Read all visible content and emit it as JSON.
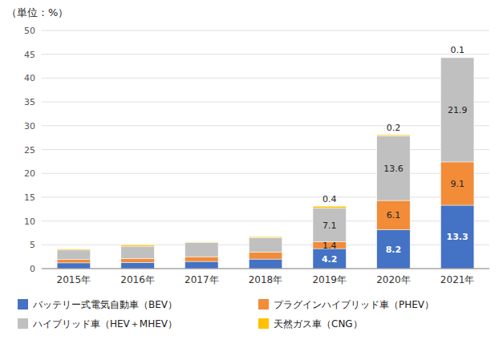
{
  "chart_data": {
    "type": "bar",
    "stacked": true,
    "title": "（単位：%）",
    "categories": [
      "2015年",
      "2016年",
      "2017年",
      "2018年",
      "2019年",
      "2020年",
      "2021年"
    ],
    "series": [
      {
        "name": "バッテリー式電気自動車（BEV）",
        "color": "#4472c4",
        "values": [
          1.2,
          1.3,
          1.5,
          2.0,
          4.2,
          8.2,
          13.3
        ],
        "value_labels": [
          null,
          null,
          null,
          null,
          "4.2",
          "8.2",
          "13.3"
        ]
      },
      {
        "name": "プラグインハイブリッド車（PHEV）",
        "color": "#f28c38",
        "values": [
          0.7,
          0.8,
          1.0,
          1.5,
          1.4,
          6.1,
          9.1
        ],
        "value_labels": [
          null,
          null,
          null,
          null,
          "1.4",
          "6.1",
          "9.1"
        ]
      },
      {
        "name": "ハイブリッド車（HEV＋MHEV）",
        "color": "#c0c0c0",
        "values": [
          2.0,
          2.6,
          3.0,
          3.0,
          7.1,
          13.6,
          21.9
        ],
        "value_labels": [
          null,
          null,
          null,
          null,
          "7.1",
          "13.6",
          "21.9"
        ]
      },
      {
        "name": "天然ガス車（CNG）",
        "color": "#ffc000",
        "values": [
          0.2,
          0.3,
          0.1,
          0.2,
          0.4,
          0.2,
          0.1
        ],
        "value_labels": [
          null,
          null,
          null,
          null,
          "0.4",
          "0.2",
          "0.1"
        ]
      }
    ],
    "ylim": [
      0,
      50
    ],
    "yticks": [
      0,
      5,
      10,
      15,
      20,
      25,
      30,
      35,
      40,
      45,
      50
    ],
    "grid": true,
    "data_labels": true,
    "legend": "bottom"
  }
}
